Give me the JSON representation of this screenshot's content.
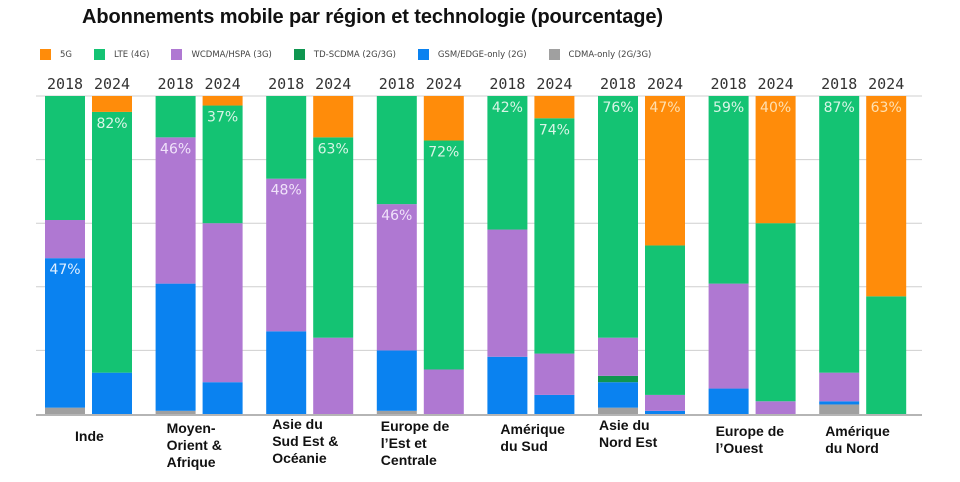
{
  "chart_data": {
    "type": "bar",
    "stacked": true,
    "title": "Abonnements mobile par région et technologie (pourcentage)",
    "xlabel": "",
    "ylabel": "",
    "ylim": [
      0,
      100
    ],
    "grid": true,
    "legend_position": "top-left",
    "stack_order_bottom_to_top": [
      "CDMA-only (2G/3G)",
      "GSM/EDGE-only (2G)",
      "TD-SCDMA (2G/3G)",
      "WCDMA/HSPA (3G)",
      "LTE (4G)",
      "5G"
    ],
    "legend": [
      {
        "name": "5G",
        "color": "#FF8C0A"
      },
      {
        "name": "LTE (4G)",
        "color": "#14C373"
      },
      {
        "name": "WCDMA/HSPA (3G)",
        "color": "#AF78D2"
      },
      {
        "name": "TD-SCDMA (2G/3G)",
        "color": "#0F9650"
      },
      {
        "name": "GSM/EDGE-only (2G)",
        "color": "#0A82F0"
      },
      {
        "name": "CDMA-only (2G/3G)",
        "color": "#A0A0A0"
      }
    ],
    "years": [
      "2018",
      "2024"
    ],
    "regions": [
      {
        "name": "Inde",
        "bars": [
          {
            "year": "2018",
            "5G": 0,
            "LTE (4G)": 39,
            "WCDMA/HSPA (3G)": 12,
            "TD-SCDMA (2G/3G)": 0,
            "GSM/EDGE-only (2G)": 47,
            "CDMA-only (2G/3G)": 2,
            "label": "47%",
            "label_series": "GSM/EDGE-only (2G)"
          },
          {
            "year": "2024",
            "5G": 5,
            "LTE (4G)": 82,
            "WCDMA/HSPA (3G)": 0,
            "TD-SCDMA (2G/3G)": 0,
            "GSM/EDGE-only (2G)": 13,
            "CDMA-only (2G/3G)": 0,
            "label": "82%",
            "label_series": "LTE (4G)"
          }
        ]
      },
      {
        "name": "Moyen-\nOrient &\nAfrique",
        "bars": [
          {
            "year": "2018",
            "5G": 0,
            "LTE (4G)": 13,
            "WCDMA/HSPA (3G)": 46,
            "TD-SCDMA (2G/3G)": 0,
            "GSM/EDGE-only (2G)": 40,
            "CDMA-only (2G/3G)": 1,
            "label": "46%",
            "label_series": "WCDMA/HSPA (3G)"
          },
          {
            "year": "2024",
            "5G": 3,
            "LTE (4G)": 37,
            "WCDMA/HSPA (3G)": 50,
            "TD-SCDMA (2G/3G)": 0,
            "GSM/EDGE-only (2G)": 10,
            "CDMA-only (2G/3G)": 0,
            "label": "37%",
            "label_series": "LTE (4G)"
          }
        ]
      },
      {
        "name": "Asie du\nSud Est &\nOcéanie",
        "bars": [
          {
            "year": "2018",
            "5G": 0,
            "LTE (4G)": 26,
            "WCDMA/HSPA (3G)": 48,
            "TD-SCDMA (2G/3G)": 0,
            "GSM/EDGE-only (2G)": 26,
            "CDMA-only (2G/3G)": 0,
            "label": "48%",
            "label_series": "WCDMA/HSPA (3G)"
          },
          {
            "year": "2024",
            "5G": 13,
            "LTE (4G)": 63,
            "WCDMA/HSPA (3G)": 24,
            "TD-SCDMA (2G/3G)": 0,
            "GSM/EDGE-only (2G)": 0,
            "CDMA-only (2G/3G)": 0,
            "label": "63%",
            "label_series": "LTE (4G)"
          }
        ]
      },
      {
        "name": "Europe de\nl’Est et\nCentrale",
        "bars": [
          {
            "year": "2018",
            "5G": 0,
            "LTE (4G)": 34,
            "WCDMA/HSPA (3G)": 46,
            "TD-SCDMA (2G/3G)": 0,
            "GSM/EDGE-only (2G)": 19,
            "CDMA-only (2G/3G)": 1,
            "label": "46%",
            "label_series": "WCDMA/HSPA (3G)"
          },
          {
            "year": "2024",
            "5G": 14,
            "LTE (4G)": 72,
            "WCDMA/HSPA (3G)": 14,
            "TD-SCDMA (2G/3G)": 0,
            "GSM/EDGE-only (2G)": 0,
            "CDMA-only (2G/3G)": 0,
            "label": "72%",
            "label_series": "LTE (4G)"
          }
        ]
      },
      {
        "name": "Amérique\ndu Sud",
        "bars": [
          {
            "year": "2018",
            "5G": 0,
            "LTE (4G)": 42,
            "WCDMA/HSPA (3G)": 40,
            "TD-SCDMA (2G/3G)": 0,
            "GSM/EDGE-only (2G)": 18,
            "CDMA-only (2G/3G)": 0,
            "label": "42%",
            "label_series": "LTE (4G)"
          },
          {
            "year": "2024",
            "5G": 7,
            "LTE (4G)": 74,
            "WCDMA/HSPA (3G)": 13,
            "TD-SCDMA (2G/3G)": 0,
            "GSM/EDGE-only (2G)": 6,
            "CDMA-only (2G/3G)": 0,
            "label": "74%",
            "label_series": "LTE (4G)"
          }
        ]
      },
      {
        "name": "Asie du\nNord Est",
        "bars": [
          {
            "year": "2018",
            "5G": 0,
            "LTE (4G)": 76,
            "WCDMA/HSPA (3G)": 12,
            "TD-SCDMA (2G/3G)": 2,
            "GSM/EDGE-only (2G)": 8,
            "CDMA-only (2G/3G)": 2,
            "label": "76%",
            "label_series": "LTE (4G)"
          },
          {
            "year": "2024",
            "5G": 47,
            "LTE (4G)": 47,
            "WCDMA/HSPA (3G)": 5,
            "TD-SCDMA (2G/3G)": 0,
            "GSM/EDGE-only (2G)": 1,
            "CDMA-only (2G/3G)": 0,
            "label": "47%",
            "label_series": "5G"
          }
        ]
      },
      {
        "name": "Europe de\nl’Ouest",
        "bars": [
          {
            "year": "2018",
            "5G": 0,
            "LTE (4G)": 59,
            "WCDMA/HSPA (3G)": 33,
            "TD-SCDMA (2G/3G)": 0,
            "GSM/EDGE-only (2G)": 8,
            "CDMA-only (2G/3G)": 0,
            "label": "59%",
            "label_series": "LTE (4G)"
          },
          {
            "year": "2024",
            "5G": 40,
            "LTE (4G)": 56,
            "WCDMA/HSPA (3G)": 4,
            "TD-SCDMA (2G/3G)": 0,
            "GSM/EDGE-only (2G)": 0,
            "CDMA-only (2G/3G)": 0,
            "label": "40%",
            "label_series": "5G"
          }
        ]
      },
      {
        "name": "Amérique\ndu Nord",
        "bars": [
          {
            "year": "2018",
            "5G": 0,
            "LTE (4G)": 87,
            "WCDMA/HSPA (3G)": 9,
            "TD-SCDMA (2G/3G)": 0,
            "GSM/EDGE-only (2G)": 1,
            "CDMA-only (2G/3G)": 3,
            "label": "87%",
            "label_series": "LTE (4G)"
          },
          {
            "year": "2024",
            "5G": 63,
            "LTE (4G)": 37,
            "WCDMA/HSPA (3G)": 0,
            "TD-SCDMA (2G/3G)": 0,
            "GSM/EDGE-only (2G)": 0,
            "CDMA-only (2G/3G)": 0,
            "label": "63%",
            "label_series": "5G"
          }
        ]
      }
    ],
    "label_colors": {
      "5G": "#FFE0B0",
      "LTE (4G)": "#D8F5E6",
      "WCDMA/HSPA (3G)": "#F0E2FA",
      "GSM/EDGE-only (2G)": "#E2F0FF"
    }
  }
}
